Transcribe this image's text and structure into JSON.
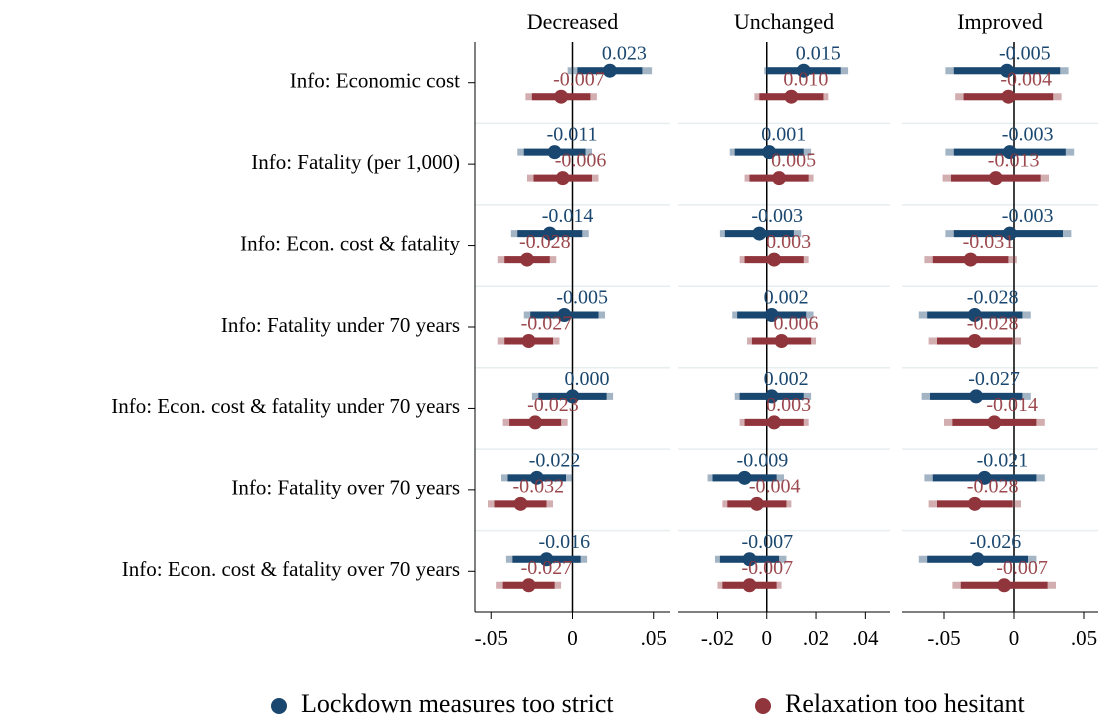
{
  "chart_data": {
    "type": "coefplot",
    "categories": [
      "Info: Economic cost",
      "Info: Fatality (per 1,000)",
      "Info: Econ. cost & fatality",
      "Info: Fatality under 70 years",
      "Info: Econ. cost & fatality under 70 years",
      "Info: Fatality over 70 years",
      "Info: Econ. cost & fatality over 70 years"
    ],
    "series": [
      {
        "name": "Lockdown measures too strict",
        "color": "#1a476f"
      },
      {
        "name": "Relaxation too hesitant",
        "color": "#90353b"
      }
    ],
    "panels": [
      {
        "title": "Decreased",
        "xlim": [
          -0.06,
          0.06
        ],
        "xticks": [
          {
            "value": -0.05,
            "label": "-.05"
          },
          0,
          {
            "value": 0.05,
            "label": ".05"
          }
        ],
        "series": [
          {
            "values": [
              0.023,
              -0.011,
              -0.014,
              -0.005,
              0,
              -0.022,
              -0.016
            ],
            "value_labels": [
              "0.023",
              "-0.011",
              "-0.014",
              "-0.005",
              "0.000",
              "-0.022",
              "-0.016"
            ],
            "ci90": [
              [
                0.003,
                0.043
              ],
              [
                -0.03,
                0.008
              ],
              [
                -0.034,
                0.006
              ],
              [
                -0.026,
                0.016
              ],
              [
                -0.021,
                0.021
              ],
              [
                -0.04,
                -0.004
              ],
              [
                -0.037,
                0.005
              ]
            ],
            "ci95": [
              [
                -0.003,
                0.049
              ],
              [
                -0.034,
                0.012
              ],
              [
                -0.038,
                0.01
              ],
              [
                -0.03,
                0.02
              ],
              [
                -0.025,
                0.025
              ],
              [
                -0.044,
                0
              ],
              [
                -0.041,
                0.009
              ]
            ]
          },
          {
            "values": [
              -0.007,
              -0.006,
              -0.028,
              -0.027,
              -0.023,
              -0.032,
              -0.027
            ],
            "value_labels": [
              "-0.007",
              "-0.006",
              "-0.028",
              "-0.027",
              "-0.023",
              "-0.032",
              "-0.027"
            ],
            "ci90": [
              [
                -0.025,
                0.011
              ],
              [
                -0.024,
                0.012
              ],
              [
                -0.042,
                -0.014
              ],
              [
                -0.042,
                -0.012
              ],
              [
                -0.039,
                -0.007
              ],
              [
                -0.048,
                -0.016
              ],
              [
                -0.043,
                -0.011
              ]
            ],
            "ci95": [
              [
                -0.029,
                0.015
              ],
              [
                -0.028,
                0.016
              ],
              [
                -0.046,
                -0.01
              ],
              [
                -0.046,
                -0.008
              ],
              [
                -0.043,
                -0.003
              ],
              [
                -0.052,
                -0.012
              ],
              [
                -0.047,
                -0.007
              ]
            ]
          }
        ]
      },
      {
        "title": "Unchanged",
        "xlim": [
          -0.036,
          0.05
        ],
        "xticks": [
          {
            "value": -0.02,
            "label": "-.02"
          },
          0,
          {
            "value": 0.02,
            "label": ".02"
          },
          {
            "value": 0.04,
            "label": ".04"
          }
        ],
        "series": [
          {
            "values": [
              0.015,
              0.001,
              -0.003,
              0.002,
              0.002,
              -0.009,
              -0.007
            ],
            "value_labels": [
              "0.015",
              "0.001",
              "-0.003",
              "0.002",
              "0.002",
              "-0.009",
              "-0.007"
            ],
            "ci90": [
              [
                0,
                0.03
              ],
              [
                -0.013,
                0.015
              ],
              [
                -0.017,
                0.011
              ],
              [
                -0.012,
                0.016
              ],
              [
                -0.011,
                0.015
              ],
              [
                -0.022,
                0.004
              ],
              [
                -0.019,
                0.005
              ]
            ],
            "ci95": [
              [
                -0.001,
                0.033
              ],
              [
                -0.015,
                0.018
              ],
              [
                -0.019,
                0.014
              ],
              [
                -0.014,
                0.019
              ],
              [
                -0.013,
                0.018
              ],
              [
                -0.024,
                0.007
              ],
              [
                -0.021,
                0.008
              ]
            ]
          },
          {
            "values": [
              0.01,
              0.005,
              0.003,
              0.006,
              0.003,
              -0.004,
              -0.007
            ],
            "value_labels": [
              "0.010",
              "0.005",
              "0.003",
              "0.006",
              "0.003",
              "-0.004",
              "-0.007"
            ],
            "ci90": [
              [
                -0.003,
                0.023
              ],
              [
                -0.007,
                0.017
              ],
              [
                -0.009,
                0.015
              ],
              [
                -0.006,
                0.018
              ],
              [
                -0.009,
                0.015
              ],
              [
                -0.016,
                0.008
              ],
              [
                -0.018,
                0.004
              ]
            ],
            "ci95": [
              [
                -0.005,
                0.025
              ],
              [
                -0.009,
                0.019
              ],
              [
                -0.011,
                0.017
              ],
              [
                -0.008,
                0.02
              ],
              [
                -0.011,
                0.017
              ],
              [
                -0.018,
                0.01
              ],
              [
                -0.02,
                0.006
              ]
            ]
          }
        ]
      },
      {
        "title": "Improved",
        "xlim": [
          -0.08,
          0.06
        ],
        "xticks": [
          {
            "value": -0.05,
            "label": "-.05"
          },
          0,
          {
            "value": 0.05,
            "label": ".05"
          }
        ],
        "series": [
          {
            "values": [
              -0.005,
              -0.003,
              -0.003,
              -0.028,
              -0.027,
              -0.021,
              -0.026
            ],
            "value_labels": [
              "-0.005",
              "-0.003",
              "-0.003",
              "-0.028",
              "-0.027",
              "-0.021",
              "-0.026"
            ],
            "ci90": [
              [
                -0.043,
                0.033
              ],
              [
                -0.043,
                0.037
              ],
              [
                -0.043,
                0.035
              ],
              [
                -0.062,
                0.006
              ],
              [
                -0.06,
                0.006
              ],
              [
                -0.058,
                0.016
              ],
              [
                -0.062,
                0.01
              ]
            ],
            "ci95": [
              [
                -0.049,
                0.039
              ],
              [
                -0.049,
                0.043
              ],
              [
                -0.049,
                0.041
              ],
              [
                -0.068,
                0.012
              ],
              [
                -0.066,
                0.012
              ],
              [
                -0.064,
                0.022
              ],
              [
                -0.068,
                0.016
              ]
            ]
          },
          {
            "values": [
              -0.004,
              -0.013,
              -0.031,
              -0.028,
              -0.014,
              -0.028,
              -0.007
            ],
            "value_labels": [
              "-0.004",
              "-0.013",
              "-0.031",
              "-0.028",
              "-0.014",
              "-0.028",
              "-0.007"
            ],
            "ci90": [
              [
                -0.036,
                0.028
              ],
              [
                -0.045,
                0.019
              ],
              [
                -0.058,
                -0.004
              ],
              [
                -0.055,
                -0.001
              ],
              [
                -0.044,
                0.016
              ],
              [
                -0.055,
                -0.001
              ],
              [
                -0.038,
                0.024
              ]
            ],
            "ci95": [
              [
                -0.042,
                0.034
              ],
              [
                -0.051,
                0.025
              ],
              [
                -0.064,
                0.002
              ],
              [
                -0.061,
                0.005
              ],
              [
                -0.05,
                0.022
              ],
              [
                -0.061,
                0.005
              ],
              [
                -0.044,
                0.03
              ]
            ]
          }
        ]
      }
    ]
  }
}
